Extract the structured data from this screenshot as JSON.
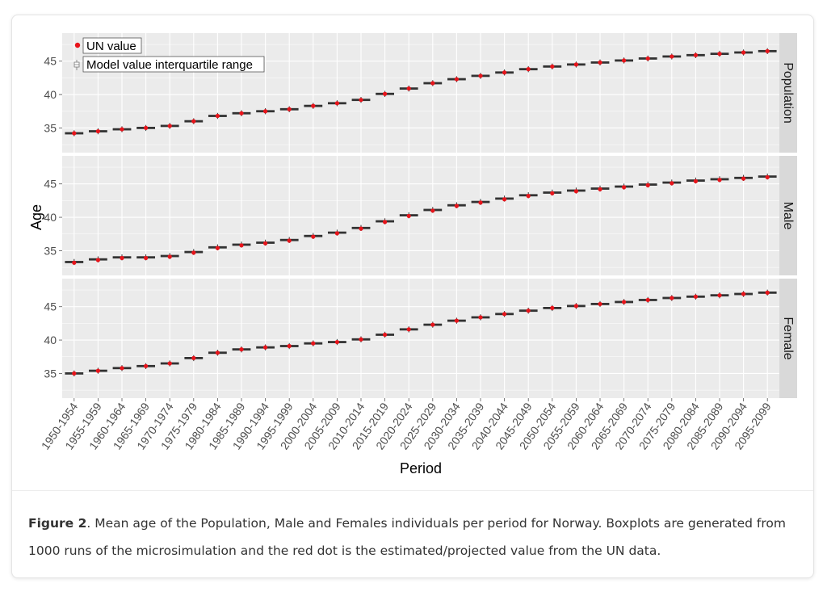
{
  "chart_data": {
    "type": "boxplot",
    "xlabel": "Period",
    "ylabel": "Age",
    "categories": [
      "1950-1954",
      "1955-1959",
      "1960-1964",
      "1965-1969",
      "1970-1974",
      "1975-1979",
      "1980-1984",
      "1985-1989",
      "1990-1994",
      "1995-1999",
      "2000-2004",
      "2005-2009",
      "2010-2014",
      "2015-2019",
      "2020-2024",
      "2025-2029",
      "2030-2034",
      "2035-2039",
      "2040-2044",
      "2045-2049",
      "2050-2054",
      "2055-2059",
      "2060-2064",
      "2065-2069",
      "2070-2074",
      "2075-2079",
      "2080-2084",
      "2085-2089",
      "2090-2094",
      "2095-2099"
    ],
    "legend": {
      "position": "top-left",
      "entries": [
        "UN value",
        "Model value interquartile range"
      ]
    },
    "grid": true,
    "facets": [
      {
        "name": "Population",
        "ylim": [
          31.3,
          49.2
        ],
        "yticks": [
          35,
          40,
          45
        ],
        "median": [
          34.2,
          34.5,
          34.8,
          35.0,
          35.3,
          36.0,
          36.8,
          37.2,
          37.5,
          37.8,
          38.3,
          38.7,
          39.2,
          40.1,
          40.9,
          41.7,
          42.3,
          42.8,
          43.3,
          43.8,
          44.2,
          44.5,
          44.8,
          45.1,
          45.4,
          45.7,
          45.9,
          46.1,
          46.3,
          46.5
        ],
        "un_value": [
          34.2,
          34.5,
          34.8,
          35.0,
          35.3,
          36.0,
          36.8,
          37.2,
          37.5,
          37.8,
          38.3,
          38.7,
          39.2,
          40.1,
          40.9,
          41.7,
          42.3,
          42.8,
          43.3,
          43.8,
          44.2,
          44.5,
          44.8,
          45.1,
          45.4,
          45.7,
          45.9,
          46.1,
          46.3,
          46.5
        ]
      },
      {
        "name": "Male",
        "ylim": [
          31.3,
          49.2
        ],
        "yticks": [
          35,
          40,
          45
        ],
        "median": [
          33.3,
          33.7,
          34.0,
          34.0,
          34.2,
          34.8,
          35.5,
          35.9,
          36.2,
          36.6,
          37.2,
          37.7,
          38.4,
          39.4,
          40.3,
          41.1,
          41.8,
          42.3,
          42.8,
          43.3,
          43.7,
          44.0,
          44.3,
          44.6,
          44.9,
          45.2,
          45.5,
          45.7,
          45.9,
          46.1
        ],
        "un_value": [
          33.2,
          33.6,
          33.9,
          33.9,
          34.1,
          34.7,
          35.4,
          35.8,
          36.1,
          36.5,
          37.1,
          37.6,
          38.3,
          39.3,
          40.2,
          41.0,
          41.7,
          42.2,
          42.7,
          43.2,
          43.6,
          43.9,
          44.2,
          44.5,
          44.8,
          45.1,
          45.4,
          45.6,
          45.8,
          46.0
        ]
      },
      {
        "name": "Female",
        "ylim": [
          31.3,
          49.2
        ],
        "yticks": [
          35,
          40,
          45
        ],
        "median": [
          35.0,
          35.4,
          35.8,
          36.1,
          36.5,
          37.3,
          38.1,
          38.6,
          38.9,
          39.1,
          39.5,
          39.7,
          40.1,
          40.8,
          41.6,
          42.3,
          42.9,
          43.4,
          43.9,
          44.4,
          44.8,
          45.1,
          45.4,
          45.7,
          46.0,
          46.3,
          46.5,
          46.7,
          46.9,
          47.1
        ],
        "un_value": [
          35.0,
          35.4,
          35.8,
          36.1,
          36.5,
          37.3,
          38.1,
          38.6,
          38.9,
          39.1,
          39.5,
          39.7,
          40.1,
          40.8,
          41.6,
          42.3,
          42.9,
          43.4,
          43.9,
          44.4,
          44.8,
          45.1,
          45.4,
          45.7,
          46.0,
          46.3,
          46.5,
          46.7,
          46.9,
          47.1
        ]
      }
    ]
  },
  "caption": {
    "label": "Figure 2",
    "text": ". Mean age of the Population, Male and Females individuals per period for Norway. Boxplots are generated from 1000 runs of the microsimulation and the red dot is the estimated/projected value from the UN data."
  },
  "colors": {
    "panel_bg": "#ebebeb",
    "strip_bg": "#d9d9d9",
    "grid": "#ffffff",
    "box": "#333333",
    "un_dot": "#e8141b"
  }
}
